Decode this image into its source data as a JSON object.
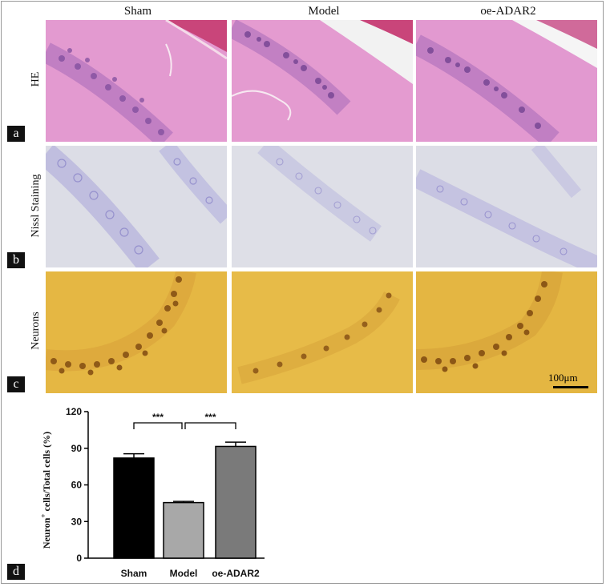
{
  "columns": [
    "Sham",
    "Model",
    "oe-ADAR2"
  ],
  "rows": [
    {
      "label": "HE",
      "letter": "a"
    },
    {
      "label": "Nissl Staining",
      "letter": "b"
    },
    {
      "label": "Neurons",
      "letter": "c"
    }
  ],
  "scale_bar": "100μm",
  "panel_d_letter": "d",
  "colors": {
    "he": "#e39ad0",
    "nissl": "#dcdde6",
    "neun": "#e5b743"
  },
  "chart_data": {
    "type": "bar",
    "categories": [
      "Sham",
      "Model",
      "oe-ADAR2"
    ],
    "values": [
      82,
      45.5,
      91.5
    ],
    "errors": [
      3.5,
      1.0,
      3.5
    ],
    "colors": [
      "#000000",
      "#a8a8a8",
      "#7a7a7a"
    ],
    "ylabel_prefix": "Neuron",
    "ylabel_sup": "+",
    "ylabel_suffix": " cells/Total cells (%)",
    "ylim": [
      0,
      120
    ],
    "yticks": [
      "0",
      "30",
      "60",
      "90",
      "120"
    ],
    "significance": [
      {
        "from": 0,
        "to": 1,
        "label": "***"
      },
      {
        "from": 1,
        "to": 2,
        "label": "***"
      }
    ]
  }
}
